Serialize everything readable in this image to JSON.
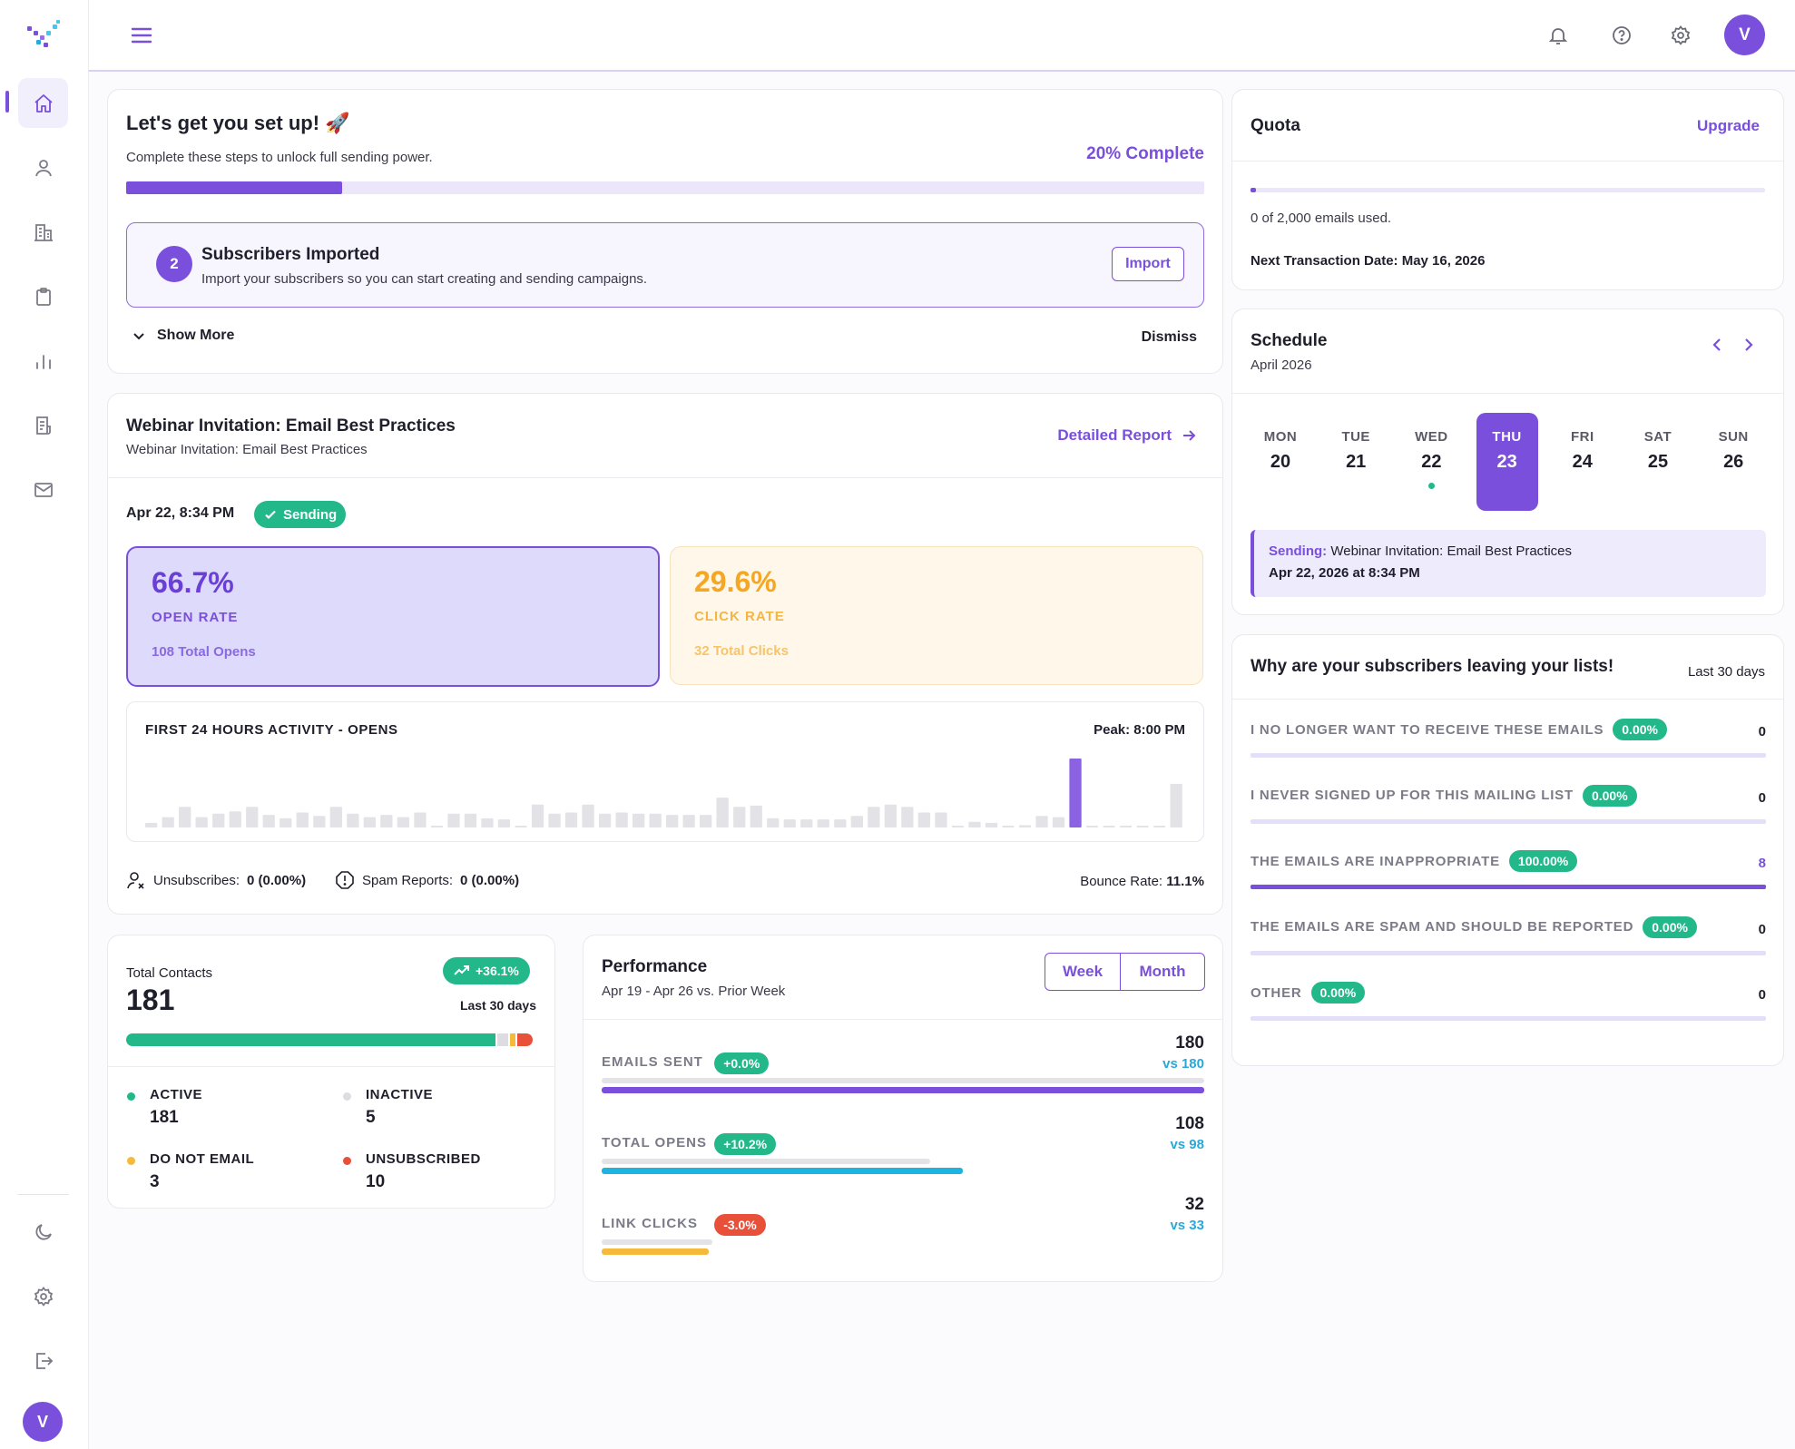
{
  "user": {
    "initial": "V"
  },
  "colors": {
    "accent": "#7a4fdc",
    "green": "#22b88a",
    "orange": "#f5a623",
    "red": "#e8503a",
    "cyan": "#2aa9d8"
  },
  "sidebar": {
    "items": [
      {
        "name": "home",
        "icon": "home-icon",
        "active": true
      },
      {
        "name": "contacts",
        "icon": "user-icon",
        "active": false
      },
      {
        "name": "companies",
        "icon": "building-icon",
        "active": false
      },
      {
        "name": "clipboard",
        "icon": "clipboard-icon",
        "active": false
      },
      {
        "name": "reports",
        "icon": "bar-chart-icon",
        "active": false
      },
      {
        "name": "forms",
        "icon": "document-icon",
        "active": false
      },
      {
        "name": "campaigns",
        "icon": "mail-icon",
        "active": false
      }
    ],
    "bottom": [
      {
        "name": "theme",
        "icon": "moon-icon"
      },
      {
        "name": "settings",
        "icon": "gear-icon"
      },
      {
        "name": "logout",
        "icon": "logout-icon"
      }
    ]
  },
  "topbar": {
    "icons": [
      "bell-icon",
      "help-icon",
      "gear-icon"
    ]
  },
  "setup": {
    "title": "Let's get you set up! 🚀",
    "subtitle": "Complete these steps to unlock full sending power.",
    "progress_label": "20% Complete",
    "progress": 0.2,
    "step_number": "2",
    "step_title": "Subscribers Imported",
    "step_desc": "Import your subscribers so you can start creating and sending campaigns.",
    "import_label": "Import",
    "show_more": "Show More",
    "dismiss": "Dismiss"
  },
  "campaign": {
    "title": "Webinar Invitation: Email Best Practices",
    "subtitle": "Webinar Invitation: Email Best Practices",
    "detailed_report": "Detailed Report",
    "date": "Apr 22, 8:34 PM",
    "status": "Sending",
    "open_rate": "66.7%",
    "open_rate_label": "OPEN RATE",
    "total_opens": "108 Total Opens",
    "click_rate": "29.6%",
    "click_rate_label": "CLICK RATE",
    "total_clicks": "32 Total Clicks",
    "activity_title": "FIRST 24 HOURS ACTIVITY - OPENS",
    "peak": "Peak: 8:00 PM",
    "activity_bars": [
      4,
      9,
      18,
      9,
      12,
      14,
      18,
      11,
      8,
      13,
      10,
      18,
      12,
      9,
      11,
      9,
      13,
      1,
      12,
      12,
      8,
      7,
      1,
      20,
      12,
      13,
      20,
      12,
      13,
      12,
      12,
      11,
      11,
      11,
      26,
      18,
      19,
      8,
      7,
      7,
      7,
      7,
      10,
      18,
      20,
      18,
      13,
      13,
      1,
      5,
      4,
      1,
      2,
      10,
      9,
      60,
      1,
      1,
      1,
      1,
      1,
      38
    ],
    "activity_highlight_index": 55,
    "unsubscribes_label": "Unsubscribes:",
    "unsubscribes_value": "0 (0.00%)",
    "spam_label": "Spam Reports:",
    "spam_value": "0 (0.00%)",
    "bounce_label": "Bounce Rate:",
    "bounce_value": "11.1%"
  },
  "contacts": {
    "label": "Total Contacts",
    "total": "181",
    "change": "+36.1%",
    "period": "Last 30 days",
    "segments": [
      {
        "label": "ACTIVE",
        "value": "181",
        "color": "#22b88a",
        "count": 181
      },
      {
        "label": "INACTIVE",
        "value": "5",
        "color": "#dcdce2",
        "count": 5
      },
      {
        "label": "DO NOT EMAIL",
        "value": "3",
        "color": "#f5b93b",
        "count": 3
      },
      {
        "label": "UNSUBSCRIBED",
        "value": "10",
        "color": "#e8503a",
        "count": 10
      }
    ]
  },
  "performance": {
    "title": "Performance",
    "range": "Apr 19 - Apr 26 vs. Prior Week",
    "toggle": [
      "Week",
      "Month"
    ],
    "rows": [
      {
        "label": "EMAILS SENT",
        "change": "+0.0%",
        "change_type": "up",
        "value": "180",
        "vs": "vs 180",
        "current": 180,
        "prior": 180,
        "color": "#7a4fdc"
      },
      {
        "label": "TOTAL OPENS",
        "change": "+10.2%",
        "change_type": "up",
        "value": "108",
        "vs": "vs 98",
        "current": 108,
        "prior": 98,
        "color": "#1fb3df"
      },
      {
        "label": "LINK CLICKS",
        "change": "-3.0%",
        "change_type": "down",
        "value": "32",
        "vs": "vs 33",
        "current": 32,
        "prior": 33,
        "color": "#f5b93b"
      }
    ]
  },
  "quota": {
    "title": "Quota",
    "upgrade": "Upgrade",
    "used_text": "0 of 2,000 emails used.",
    "used_fraction": 0.0,
    "next_date": "Next Transaction Date: May 16, 2026"
  },
  "schedule": {
    "title": "Schedule",
    "month": "April 2026",
    "days": [
      {
        "name": "MON",
        "date": "20",
        "selected": false,
        "dot": false
      },
      {
        "name": "TUE",
        "date": "21",
        "selected": false,
        "dot": false
      },
      {
        "name": "WED",
        "date": "22",
        "selected": false,
        "dot": true
      },
      {
        "name": "THU",
        "date": "23",
        "selected": true,
        "dot": false
      },
      {
        "name": "FRI",
        "date": "24",
        "selected": false,
        "dot": false
      },
      {
        "name": "SAT",
        "date": "25",
        "selected": false,
        "dot": false
      },
      {
        "name": "SUN",
        "date": "26",
        "selected": false,
        "dot": false
      }
    ],
    "event_status": "Sending:",
    "event_title": "Webinar Invitation: Email Best Practices",
    "event_time": "Apr 22, 2026 at 8:34 PM"
  },
  "leaving": {
    "title": "Why are your subscribers leaving your lists!",
    "period": "Last 30 days",
    "reasons": [
      {
        "label": "I NO LONGER WANT TO RECEIVE THESE EMAILS",
        "pct": "0.00%",
        "count": "0",
        "fraction": 0
      },
      {
        "label": "I NEVER SIGNED UP FOR THIS MAILING LIST",
        "pct": "0.00%",
        "count": "0",
        "fraction": 0
      },
      {
        "label": "THE EMAILS ARE INAPPROPRIATE",
        "pct": "100.00%",
        "count": "8",
        "fraction": 1
      },
      {
        "label": "THE EMAILS ARE SPAM AND SHOULD BE REPORTED",
        "pct": "0.00%",
        "count": "0",
        "fraction": 0
      },
      {
        "label": "OTHER",
        "pct": "0.00%",
        "count": "0",
        "fraction": 0
      }
    ]
  }
}
